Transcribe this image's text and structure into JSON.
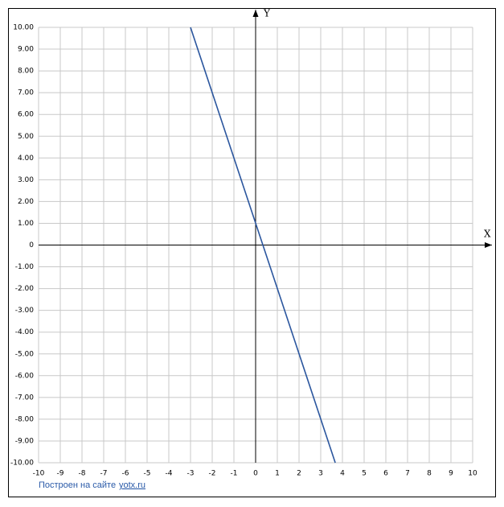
{
  "chart_data": {
    "type": "line",
    "x_label": "X",
    "y_label": "Y",
    "x": [
      -3,
      3.67
    ],
    "series": [
      {
        "color": "#2b569e",
        "values": [
          10,
          -10
        ]
      }
    ],
    "xlim": [
      -10,
      10
    ],
    "ylim": [
      -10,
      10
    ],
    "xticks": [
      -10,
      -9,
      -8,
      -7,
      -6,
      -5,
      -4,
      -3,
      -2,
      -1,
      0,
      1,
      2,
      3,
      4,
      5,
      6,
      7,
      8,
      9,
      10
    ],
    "yticks": [
      {
        "value": 10,
        "label": "10.00"
      },
      {
        "value": 9,
        "label": "9.00"
      },
      {
        "value": 8,
        "label": "8.00"
      },
      {
        "value": 7,
        "label": "7.00"
      },
      {
        "value": 6,
        "label": "6.00"
      },
      {
        "value": 5,
        "label": "5.00"
      },
      {
        "value": 4,
        "label": "4.00"
      },
      {
        "value": 3,
        "label": "3.00"
      },
      {
        "value": 2,
        "label": "2.00"
      },
      {
        "value": 1,
        "label": "1.00"
      },
      0,
      {
        "value": -1,
        "label": "-1.00"
      },
      {
        "value": -2,
        "label": "-2.00"
      },
      {
        "value": -3,
        "label": "-3.00"
      },
      {
        "value": -4,
        "label": "-4.00"
      },
      {
        "value": -5,
        "label": "-5.00"
      },
      {
        "value": -6,
        "label": "-6.00"
      },
      {
        "value": -7,
        "label": "-7.00"
      },
      {
        "value": -8,
        "label": "-8.00"
      },
      {
        "value": -9,
        "label": "-9.00"
      },
      {
        "value": -10,
        "label": "-10.00"
      }
    ],
    "grid": true,
    "credit_text": "Построен на сайте",
    "credit_link": "yotx.ru"
  }
}
